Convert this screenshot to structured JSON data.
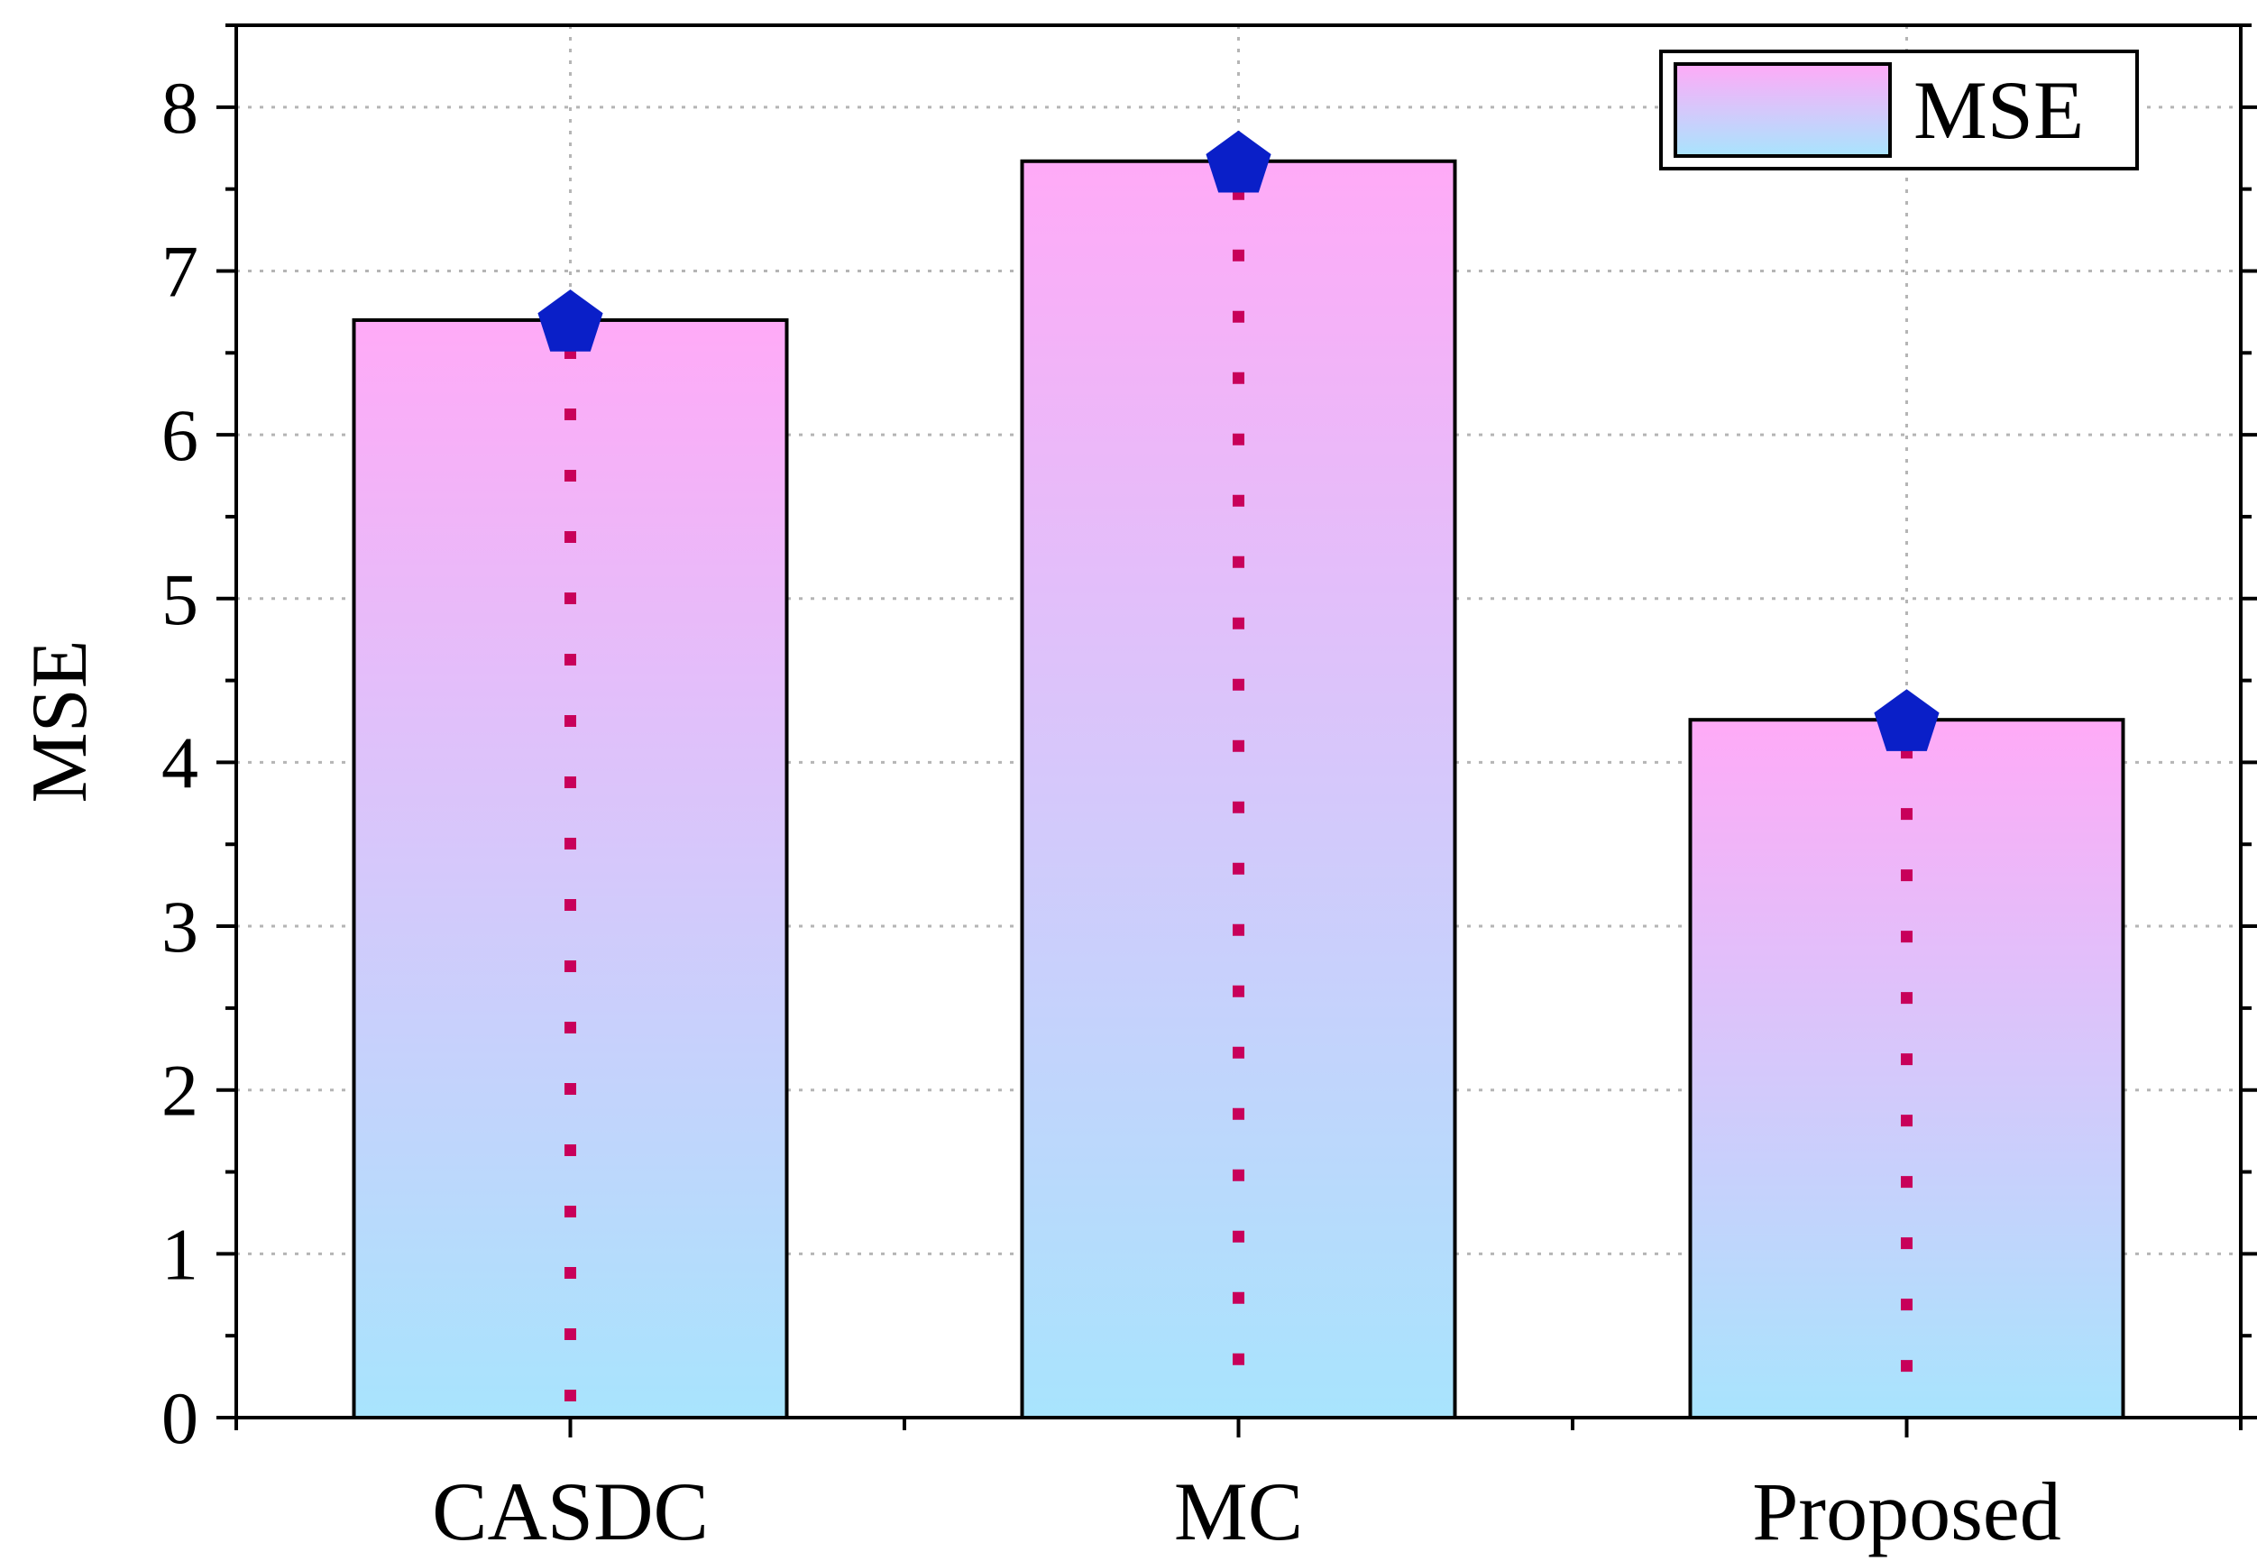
{
  "chart_data": {
    "type": "bar",
    "title": "",
    "xlabel": "",
    "ylabel": "MSE",
    "categories": [
      "CASDC",
      "MC",
      "Proposed"
    ],
    "series": [
      {
        "name": "MSE",
        "values": [
          6.7,
          7.67,
          4.26
        ]
      }
    ],
    "ylim": [
      0,
      8.5
    ],
    "yticks": [
      0,
      1,
      2,
      3,
      4,
      5,
      6,
      7,
      8
    ],
    "grid": true,
    "legend": {
      "position": "top-right",
      "entries": [
        "MSE"
      ]
    },
    "colors": {
      "bar_gradient_top": "#ffaaf7",
      "bar_gradient_mid": "#d5c8fb",
      "bar_gradient_bottom": "#a8e4fd",
      "marker": "#0a1fc8",
      "drop_line": "#c8005a",
      "grid": "#b5b5b5",
      "axis": "#000000"
    }
  }
}
